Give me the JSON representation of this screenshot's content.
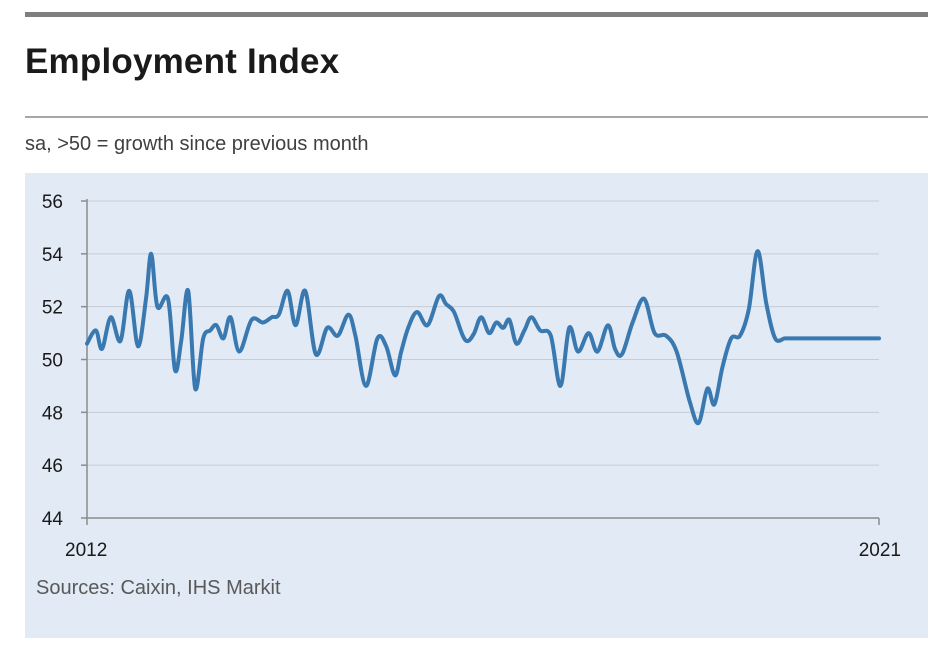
{
  "header": {
    "title": "Employment Index",
    "subtitle": "sa, >50 = growth since previous month"
  },
  "footer": {
    "source": "Sources: Caixin, IHS Markit"
  },
  "colors": {
    "line": "#3a78b0",
    "panel_background": "#e1eaf5",
    "gridline": "#c6cdd6",
    "axis": "#8c8c8c"
  },
  "chart_data": {
    "type": "line",
    "title": "Employment Index",
    "subtitle": "sa, >50 = growth since previous month",
    "xlabel": "",
    "ylabel": "",
    "xlim": [
      2012.0,
      2021.0
    ],
    "ylim": [
      44,
      56
    ],
    "y_ticks": [
      44,
      46,
      48,
      50,
      52,
      54,
      56
    ],
    "x_tick_labels": [
      {
        "value": 2012,
        "label": "2012"
      },
      {
        "value": 2021,
        "label": "2021"
      }
    ],
    "grid": true,
    "legend": "none",
    "source": "Sources: Caixin, IHS Markit",
    "series": [
      {
        "x": [
          2012.0,
          2012.1,
          2012.17,
          2012.27,
          2012.38,
          2012.48,
          2012.58,
          2012.67,
          2012.73,
          2012.8,
          2012.92,
          2013.0,
          2013.07,
          2013.15,
          2013.23,
          2013.32,
          2013.4,
          2013.47,
          2013.55,
          2013.63,
          2013.73,
          2013.87,
          2014.0,
          2014.1,
          2014.18,
          2014.28,
          2014.37,
          2014.48,
          2014.6,
          2014.73,
          2014.85,
          2014.97,
          2015.05,
          2015.17,
          2015.3,
          2015.4,
          2015.5,
          2015.57,
          2015.65,
          2015.75,
          2015.87,
          2016.0,
          2016.08,
          2016.17,
          2016.27,
          2016.33,
          2016.4,
          2016.48,
          2016.57,
          2016.65,
          2016.73,
          2016.8,
          2016.88,
          2016.97,
          2017.05,
          2017.15,
          2017.27,
          2017.38,
          2017.48,
          2017.58,
          2017.7,
          2017.8,
          2017.92,
          2018.0,
          2018.08,
          2018.2,
          2018.33,
          2018.45,
          2018.58,
          2018.7,
          2018.85,
          2018.95,
          2019.05,
          2019.13,
          2019.22,
          2019.32,
          2019.42,
          2019.52,
          2019.62,
          2019.72,
          2019.82,
          2019.93,
          2020.02,
          2020.1,
          2020.18,
          2020.27,
          2020.37,
          2020.43,
          2020.5,
          2020.57,
          2020.65,
          2020.75,
          2020.83,
          2020.93,
          2021.0
        ],
        "values": [
          50.6,
          51.1,
          50.4,
          51.6,
          50.7,
          52.6,
          50.5,
          52.3,
          54.0,
          52.0,
          52.3,
          49.6,
          50.7,
          52.6,
          48.9,
          50.8,
          51.1,
          51.3,
          50.8,
          51.6,
          50.3,
          51.5,
          51.4,
          51.6,
          51.7,
          52.6,
          51.3,
          52.6,
          50.2,
          51.2,
          50.9,
          51.7,
          50.9,
          49.0,
          50.8,
          50.5,
          49.4,
          50.3,
          51.2,
          51.8,
          51.3,
          52.4,
          52.1,
          51.8,
          50.9,
          50.7,
          51.0,
          51.6,
          51.0,
          51.4,
          51.2,
          51.5,
          50.6,
          51.1,
          51.6,
          51.1,
          50.9,
          49.0,
          51.2,
          50.3,
          51.0,
          50.3,
          51.3,
          50.4,
          50.2,
          51.4,
          52.3,
          51.0,
          50.9,
          50.3,
          48.4,
          47.6,
          48.9,
          48.3,
          49.7,
          50.8,
          50.9,
          51.9,
          54.1,
          52.1,
          50.8,
          50.8,
          50.8,
          50.8,
          50.8,
          50.8,
          50.8,
          50.8,
          50.8,
          50.8,
          50.8,
          50.8,
          50.8,
          50.8,
          50.8
        ]
      }
    ]
  }
}
